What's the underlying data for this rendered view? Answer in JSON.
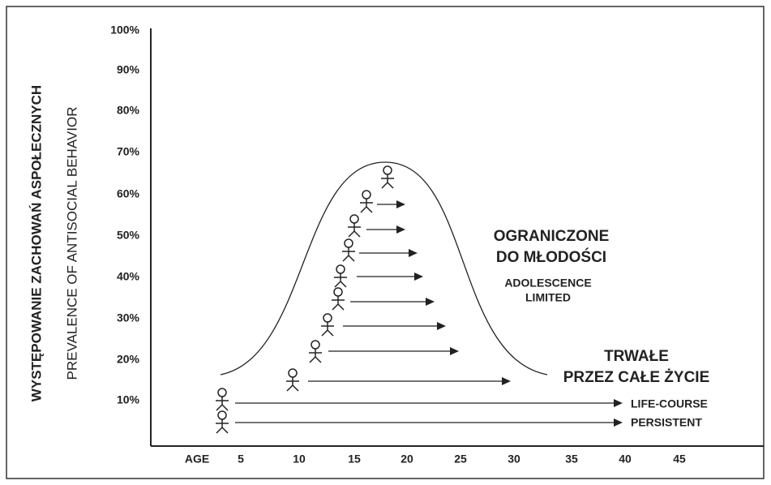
{
  "y_axis": {
    "title": "WYSTĘPOWANIE ZACHOWAŃ ASPOŁECZNYCH",
    "subtitle": "PREVALENCE OF ANTISOCIAL BEHAVIOR",
    "ticks": [
      "100%",
      "90%",
      "80%",
      "70%",
      "60%",
      "50%",
      "40%",
      "30%",
      "20%",
      "10%"
    ]
  },
  "x_axis": {
    "ticks": [
      "AGE",
      "5",
      "10",
      "15",
      "20",
      "25",
      "30",
      "35",
      "40",
      "45"
    ]
  },
  "adolescence": {
    "title_pl": [
      "OGRANICZONE",
      "DO MŁODOŚCI"
    ],
    "title_en": [
      "ADOLESCENCE",
      "LIMITED"
    ]
  },
  "life_course": {
    "title_pl": [
      "TRWAŁE",
      "PRZEZ CAŁE ŻYCIE"
    ],
    "title_en": [
      "LIFE-COURSE",
      "PERSISTENT"
    ]
  }
}
